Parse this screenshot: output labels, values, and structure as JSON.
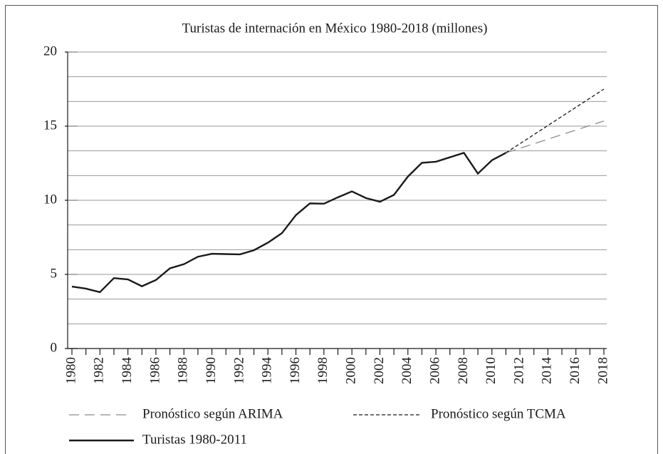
{
  "chart_data": {
    "type": "line",
    "title": "Turistas de internación en México 1980-2018 (millones)",
    "xlim": [
      1980,
      2018
    ],
    "xticks": [
      1980,
      1982,
      1984,
      1986,
      1988,
      1990,
      1992,
      1994,
      1996,
      1998,
      2000,
      2002,
      2004,
      2006,
      2008,
      2010,
      2012,
      2014,
      2016,
      2018
    ],
    "ylim": [
      0,
      20
    ],
    "yticks": [
      0,
      5,
      10,
      15,
      20
    ],
    "grid": true,
    "series": [
      {
        "name": "Pronóstico según ARIMA",
        "color": "#8c8c8c",
        "style": "dashed",
        "x": [
          2011,
          2018
        ],
        "values": [
          13.2,
          15.35
        ]
      },
      {
        "name": "Pronóstico según TCMA",
        "color": "#1a1a1a",
        "style": "dotted",
        "x": [
          2011,
          2018
        ],
        "values": [
          13.2,
          17.5
        ]
      },
      {
        "name": "Turistas 1980-2011",
        "color": "#1a1a1a",
        "style": "solid",
        "x": [
          1980,
          1981,
          1982,
          1983,
          1984,
          1985,
          1986,
          1987,
          1988,
          1989,
          1990,
          1991,
          1992,
          1993,
          1994,
          1995,
          1996,
          1997,
          1998,
          1999,
          2000,
          2001,
          2002,
          2003,
          2004,
          2005,
          2006,
          2007,
          2008,
          2009,
          2010,
          2011
        ],
        "values": [
          4.18,
          4.04,
          3.8,
          4.75,
          4.66,
          4.2,
          4.62,
          5.41,
          5.69,
          6.19,
          6.39,
          6.37,
          6.35,
          6.63,
          7.14,
          7.78,
          9.0,
          9.79,
          9.77,
          10.2,
          10.6,
          10.15,
          9.9,
          10.36,
          11.6,
          12.53,
          12.6,
          12.9,
          13.2,
          11.8,
          12.7,
          13.2
        ]
      }
    ]
  }
}
